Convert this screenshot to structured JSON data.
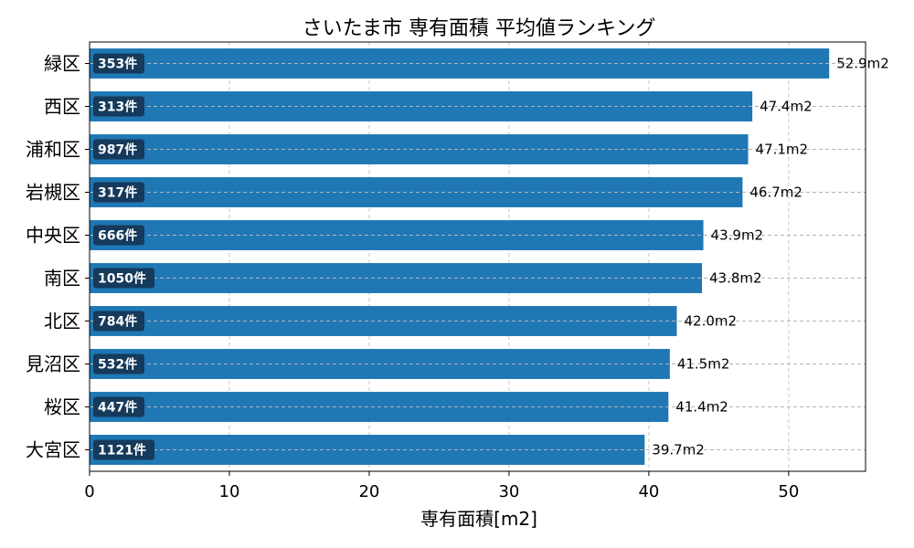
{
  "chart_data": {
    "type": "bar",
    "orientation": "horizontal",
    "title": "さいたま市 専有面積 平均値ランキング",
    "xlabel": "専有面積[m2]",
    "ylabel": "",
    "xlim": [
      0,
      55.5
    ],
    "xticks": [
      0,
      10,
      20,
      30,
      40,
      50
    ],
    "grid": true,
    "categories": [
      "緑区",
      "西区",
      "浦和区",
      "岩槻区",
      "中央区",
      "南区",
      "北区",
      "見沼区",
      "桜区",
      "大宮区"
    ],
    "values": [
      52.9,
      47.4,
      47.1,
      46.7,
      43.9,
      43.8,
      42.0,
      41.5,
      41.4,
      39.7
    ],
    "value_labels": [
      "52.9m2",
      "47.4m2",
      "47.1m2",
      "46.7m2",
      "43.9m2",
      "43.8m2",
      "42.0m2",
      "41.5m2",
      "41.4m2",
      "39.7m2"
    ],
    "count_labels": [
      "353件",
      "313件",
      "987件",
      "317件",
      "666件",
      "1050件",
      "784件",
      "532件",
      "447件",
      "1121件"
    ],
    "bar_color": "#1f77b4",
    "badge_color": "#153a5b"
  }
}
